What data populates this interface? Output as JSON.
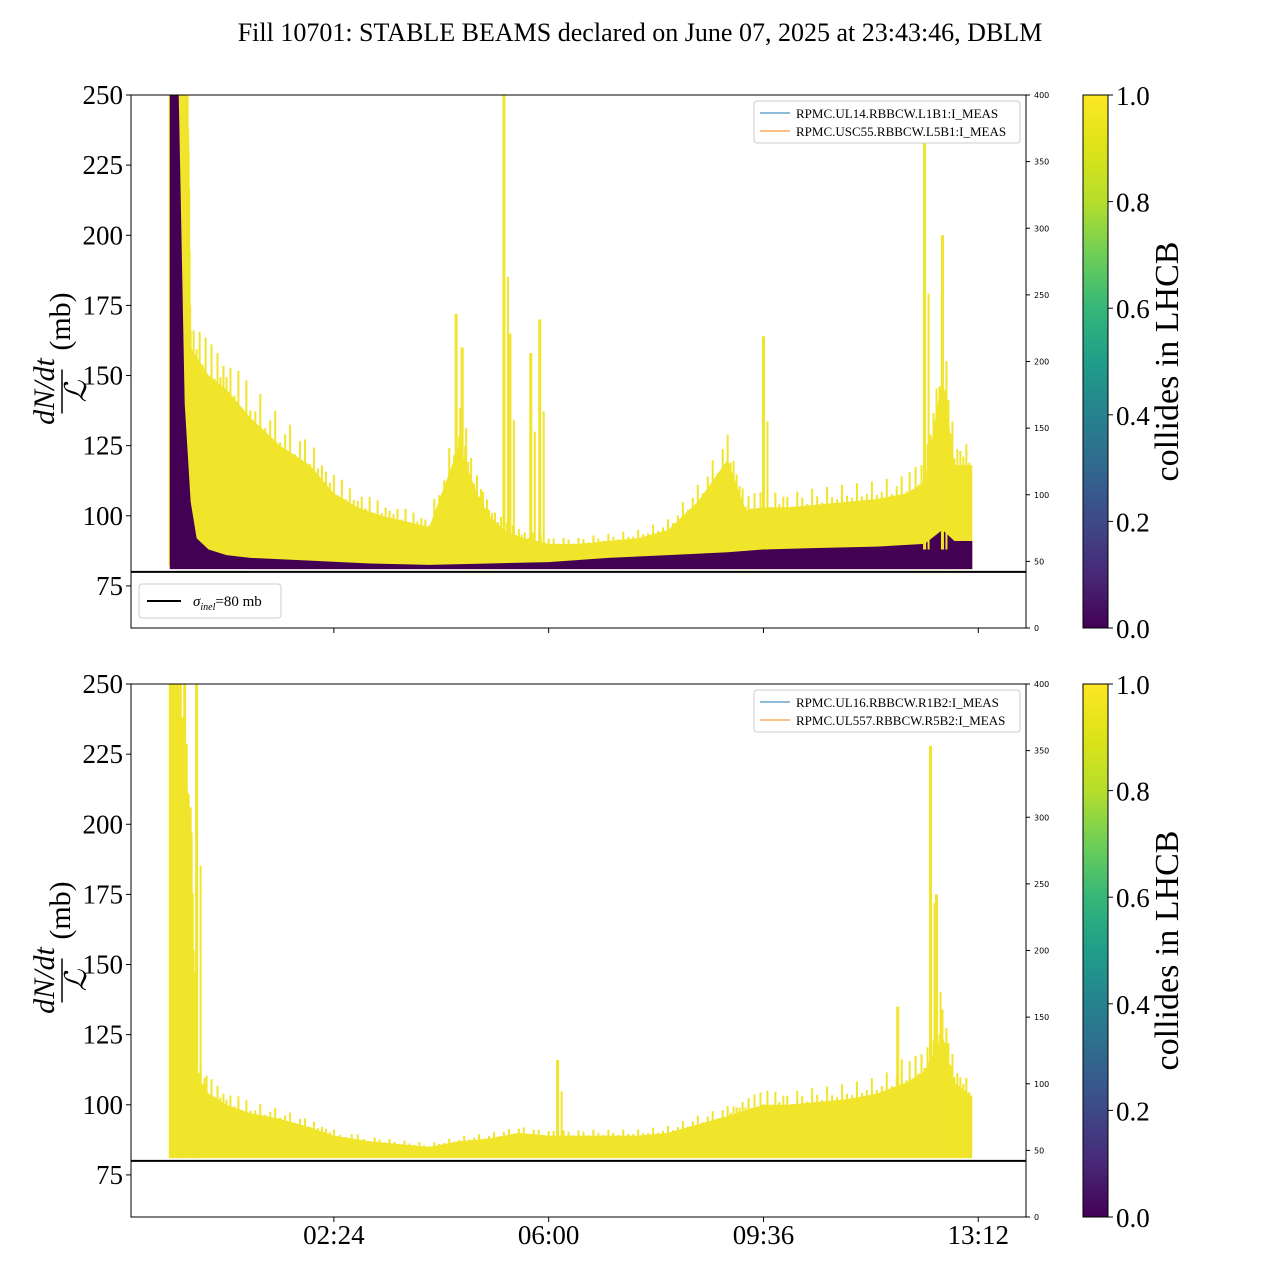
{
  "title": "Fill 10701: STABLE BEAMS declared on June 07, 2025 at 23:43:46, DBLM",
  "colors": {
    "collides": "#f0e52a",
    "non_colliding": "#440154",
    "ref_line": "#000000",
    "series_blue": "#1f77b4",
    "series_orange": "#ff7f0e"
  },
  "chart_data": [
    {
      "type": "area",
      "panel": "top",
      "ylabel_num": "dN/dt",
      "ylabel_den": "ℒ",
      "ylabel_unit": "(mb)",
      "ylim": [
        60,
        250
      ],
      "yticks": [
        75,
        100,
        125,
        150,
        175,
        200,
        225,
        250
      ],
      "secondary_ylim": [
        0,
        400
      ],
      "secondary_yticks": [
        0,
        50,
        100,
        150,
        200,
        250,
        300,
        350,
        400
      ],
      "xlim_hours": [
        -1.0,
        14.0
      ],
      "xticks": [
        {
          "hour": 2.4,
          "label": "02:24"
        },
        {
          "hour": 6.0,
          "label": "06:00"
        },
        {
          "hour": 9.6,
          "label": "09:36"
        },
        {
          "hour": 13.2,
          "label": "13:12"
        }
      ],
      "show_xtick_labels": false,
      "reference_line": {
        "value": 80,
        "label": "σinel=80 mb",
        "label_sigma": "σ",
        "label_sub": "inel",
        "label_rest": "=80 mb"
      },
      "legend": [
        "RPMC.UL14.RBBCW.L1B1:I_MEAS",
        "RPMC.USC55.RBBCW.L5B1:I_MEAS"
      ],
      "colliding_envelope": {
        "hours": [
          -0.35,
          -0.2,
          -0.05,
          0.0,
          0.3,
          0.6,
          1.0,
          1.5,
          2.0,
          2.4,
          2.8,
          3.2,
          3.6,
          4.0,
          4.5,
          4.8,
          5.0,
          5.3,
          5.6,
          6.0,
          6.5,
          7.0,
          7.5,
          8.0,
          8.5,
          9.0,
          9.3,
          9.6,
          10.0,
          10.5,
          11.0,
          11.5,
          12.0,
          12.3,
          12.6,
          12.8,
          13.1
        ],
        "upper": [
          250,
          250,
          250,
          160,
          150,
          145,
          135,
          125,
          118,
          108,
          103,
          100,
          98,
          96,
          125,
          108,
          100,
          94,
          92,
          90,
          90,
          91,
          92,
          95,
          105,
          120,
          102,
          103,
          103,
          104,
          105,
          106,
          108,
          112,
          150,
          118,
          118
        ],
        "lower": [
          82,
          82,
          82,
          82,
          82,
          82,
          81,
          81,
          81,
          81,
          81,
          81,
          81,
          81,
          81,
          81,
          81,
          81,
          81,
          81,
          81,
          81,
          81,
          81,
          81,
          81,
          81,
          81,
          81,
          81,
          81,
          81,
          81,
          81,
          81,
          81,
          81
        ]
      },
      "noncolliding_envelope": {
        "hours": [
          -0.35,
          -0.2,
          -0.1,
          0.0,
          0.1,
          0.3,
          0.6,
          1.0,
          2.0,
          3.0,
          4.0,
          5.0,
          6.0,
          7.0,
          8.0,
          9.0,
          9.6,
          10.5,
          11.5,
          12.3,
          12.6,
          12.8,
          13.1
        ],
        "upper": [
          250,
          250,
          140,
          105,
          92,
          88,
          86,
          85,
          84,
          83,
          82.5,
          83,
          83.5,
          85,
          86,
          87,
          88,
          88.5,
          89,
          90,
          95,
          91,
          91
        ],
        "lower": [
          81,
          81,
          81,
          81,
          81,
          81,
          81,
          81,
          81,
          81,
          81,
          81,
          81,
          81,
          81,
          81,
          81,
          81,
          81,
          81,
          81,
          81,
          81
        ]
      },
      "spikes": [
        {
          "hour": 4.45,
          "value": 172
        },
        {
          "hour": 4.55,
          "value": 160
        },
        {
          "hour": 5.25,
          "value": 250
        },
        {
          "hour": 5.35,
          "value": 165
        },
        {
          "hour": 5.7,
          "value": 158
        },
        {
          "hour": 5.85,
          "value": 170
        },
        {
          "hour": 9.6,
          "value": 164
        },
        {
          "hour": 12.6,
          "value": 200
        },
        {
          "hour": 12.3,
          "value": 240
        }
      ]
    },
    {
      "type": "area",
      "panel": "bottom",
      "ylabel_num": "dN/dt",
      "ylabel_den": "ℒ",
      "ylabel_unit": "(mb)",
      "ylim": [
        60,
        250
      ],
      "yticks": [
        75,
        100,
        125,
        150,
        175,
        200,
        225,
        250
      ],
      "secondary_ylim": [
        0,
        400
      ],
      "secondary_yticks": [
        0,
        50,
        100,
        150,
        200,
        250,
        300,
        350,
        400
      ],
      "xlim_hours": [
        -1.0,
        14.0
      ],
      "xticks": [
        {
          "hour": 2.4,
          "label": "02:24"
        },
        {
          "hour": 6.0,
          "label": "06:00"
        },
        {
          "hour": 9.6,
          "label": "09:36"
        },
        {
          "hour": 13.2,
          "label": "13:12"
        }
      ],
      "show_xtick_labels": true,
      "reference_line": {
        "value": 80,
        "label": "σinel=80 mb",
        "label_sigma": "σ",
        "label_sub": "inel",
        "label_rest": "=80 mb"
      },
      "legend": [
        "RPMC.UL16.RBBCW.R1B2:I_MEAS",
        "RPMC.UL557.RBBCW.R5B2:I_MEAS"
      ],
      "colliding_envelope": {
        "hours": [
          -0.35,
          -0.2,
          0.0,
          0.1,
          0.3,
          0.6,
          1.0,
          1.5,
          2.0,
          2.4,
          3.0,
          3.5,
          4.0,
          4.5,
          5.0,
          5.5,
          6.0,
          6.5,
          7.0,
          7.5,
          8.0,
          8.5,
          9.0,
          9.3,
          9.6,
          10.0,
          10.5,
          11.0,
          11.5,
          12.0,
          12.3,
          12.6,
          12.8,
          13.1
        ],
        "upper": [
          250,
          250,
          200,
          110,
          104,
          100,
          97,
          95,
          92,
          89,
          87,
          86,
          85,
          87,
          88,
          90,
          89,
          89,
          89,
          89,
          90,
          93,
          96,
          98,
          100,
          100,
          101,
          102,
          104,
          108,
          112,
          125,
          108,
          103
        ],
        "lower": [
          81,
          81,
          81,
          81,
          81,
          81,
          81,
          81,
          81,
          81,
          81,
          81,
          81,
          81,
          81,
          81,
          81,
          81,
          81,
          81,
          81,
          81,
          81,
          81,
          81,
          81,
          81,
          81,
          81,
          81,
          81,
          81,
          81,
          81
        ]
      },
      "noncolliding_envelope": {
        "hours": [],
        "upper": [],
        "lower": []
      },
      "spikes": [
        {
          "hour": -0.1,
          "value": 250
        },
        {
          "hour": 0.1,
          "value": 250
        },
        {
          "hour": 6.15,
          "value": 116
        },
        {
          "hour": 11.85,
          "value": 135
        },
        {
          "hour": 12.4,
          "value": 228
        },
        {
          "hour": 12.5,
          "value": 175
        }
      ]
    }
  ],
  "colorbars": [
    {
      "label": "collides in LHCB",
      "ticks": [
        "0.0",
        "0.2",
        "0.4",
        "0.6",
        "0.8",
        "1.0"
      ]
    },
    {
      "label": "collides in LHCB",
      "ticks": [
        "0.0",
        "0.2",
        "0.4",
        "0.6",
        "0.8",
        "1.0"
      ]
    }
  ]
}
